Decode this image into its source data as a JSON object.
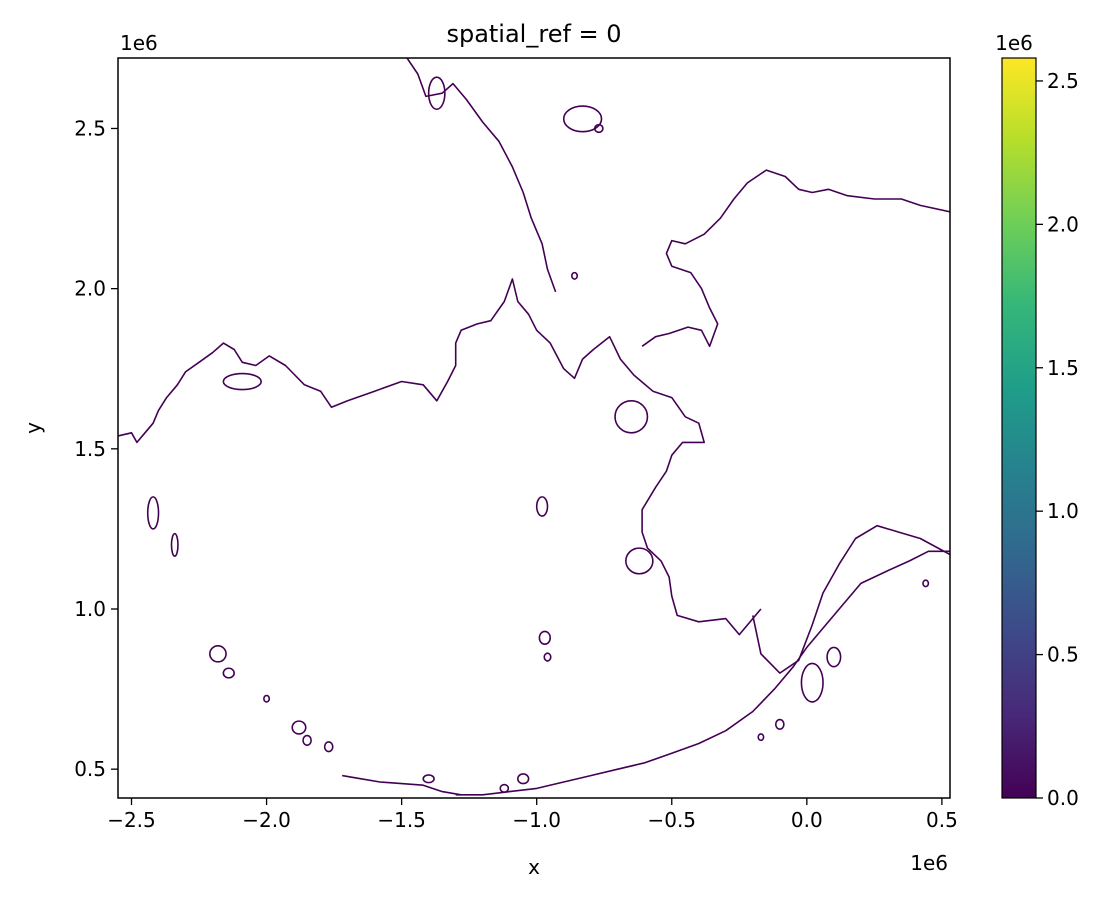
{
  "chart_data": {
    "type": "heatmap",
    "title": "spatial_ref = 0",
    "xlabel": "x",
    "ylabel": "y",
    "x_offset_text": "1e6",
    "y_offset_text": "1e6",
    "xlim": [
      -2.55,
      0.53
    ],
    "ylim": [
      0.41,
      2.72
    ],
    "x_ticks": [
      -2.5,
      -2.0,
      -1.5,
      -1.0,
      -0.5,
      0.0,
      0.5
    ],
    "x_tick_labels": [
      "−2.5",
      "−2.0",
      "−1.5",
      "−1.0",
      "−0.5",
      "0.0",
      "0.5"
    ],
    "y_ticks": [
      0.5,
      1.0,
      1.5,
      2.0,
      2.5
    ],
    "y_tick_labels": [
      "0.5",
      "1.0",
      "1.5",
      "2.0",
      "2.5"
    ],
    "grid": false,
    "colorbar": {
      "colormap": "viridis",
      "range": [
        0.0,
        2.58
      ],
      "ticks": [
        0.0,
        0.5,
        1.0,
        1.5,
        2.0,
        2.5
      ],
      "tick_labels": [
        "0.0",
        "0.5",
        "1.0",
        "1.5",
        "2.0",
        "2.5"
      ],
      "offset_text": "1e6",
      "colors": [
        "#440154",
        "#482878",
        "#3e4989",
        "#31688e",
        "#26828e",
        "#1f9e89",
        "#35b779",
        "#6ece58",
        "#b5de2b",
        "#fde725"
      ]
    },
    "mask_color": "#440154",
    "coastlines": [
      {
        "name": "mainland-west",
        "points": [
          [
            -2.55,
            1.54
          ],
          [
            -2.5,
            1.55
          ],
          [
            -2.48,
            1.52
          ],
          [
            -2.45,
            1.55
          ],
          [
            -2.42,
            1.58
          ],
          [
            -2.4,
            1.62
          ],
          [
            -2.37,
            1.66
          ],
          [
            -2.33,
            1.7
          ],
          [
            -2.3,
            1.74
          ],
          [
            -2.25,
            1.77
          ],
          [
            -2.2,
            1.8
          ],
          [
            -2.16,
            1.83
          ],
          [
            -2.12,
            1.81
          ],
          [
            -2.09,
            1.77
          ],
          [
            -2.04,
            1.76
          ],
          [
            -1.99,
            1.79
          ],
          [
            -1.93,
            1.76
          ],
          [
            -1.86,
            1.7
          ],
          [
            -1.8,
            1.68
          ],
          [
            -1.76,
            1.63
          ],
          [
            -1.7,
            1.65
          ],
          [
            -1.6,
            1.68
          ],
          [
            -1.5,
            1.71
          ],
          [
            -1.42,
            1.7
          ],
          [
            -1.37,
            1.65
          ],
          [
            -1.33,
            1.71
          ],
          [
            -1.3,
            1.76
          ],
          [
            -1.3,
            1.83
          ],
          [
            -1.28,
            1.87
          ],
          [
            -1.22,
            1.89
          ],
          [
            -1.17,
            1.9
          ],
          [
            -1.12,
            1.96
          ],
          [
            -1.09,
            2.03
          ],
          [
            -1.07,
            1.96
          ],
          [
            -1.03,
            1.92
          ],
          [
            -1.0,
            1.87
          ],
          [
            -0.95,
            1.83
          ],
          [
            -0.9,
            1.75
          ],
          [
            -0.86,
            1.72
          ],
          [
            -0.83,
            1.78
          ],
          [
            -0.79,
            1.81
          ],
          [
            -0.73,
            1.85
          ],
          [
            -0.69,
            1.78
          ],
          [
            -0.64,
            1.73
          ],
          [
            -0.57,
            1.68
          ],
          [
            -0.5,
            1.66
          ],
          [
            -0.45,
            1.6
          ],
          [
            -0.4,
            1.58
          ],
          [
            -0.38,
            1.52
          ],
          [
            -0.46,
            1.52
          ],
          [
            -0.5,
            1.48
          ],
          [
            -0.52,
            1.43
          ],
          [
            -0.56,
            1.38
          ],
          [
            -0.61,
            1.31
          ],
          [
            -0.61,
            1.24
          ],
          [
            -0.59,
            1.19
          ],
          [
            -0.54,
            1.15
          ],
          [
            -0.51,
            1.1
          ],
          [
            -0.5,
            1.04
          ],
          [
            -0.48,
            0.98
          ],
          [
            -0.4,
            0.96
          ],
          [
            -0.3,
            0.97
          ],
          [
            -0.25,
            0.92
          ],
          [
            -0.17,
            1.0
          ]
        ]
      },
      {
        "name": "mainland-north",
        "points": [
          [
            -1.48,
            2.72
          ],
          [
            -1.44,
            2.67
          ],
          [
            -1.41,
            2.6
          ],
          [
            -1.35,
            2.61
          ],
          [
            -1.31,
            2.64
          ],
          [
            -1.26,
            2.59
          ],
          [
            -1.2,
            2.52
          ],
          [
            -1.14,
            2.46
          ],
          [
            -1.09,
            2.38
          ],
          [
            -1.05,
            2.3
          ],
          [
            -1.02,
            2.22
          ],
          [
            -0.98,
            2.14
          ],
          [
            -0.96,
            2.06
          ],
          [
            -0.93,
            1.99
          ]
        ]
      },
      {
        "name": "mainland-northeast",
        "points": [
          [
            -0.61,
            1.82
          ],
          [
            -0.56,
            1.85
          ],
          [
            -0.51,
            1.86
          ],
          [
            -0.44,
            1.88
          ],
          [
            -0.39,
            1.87
          ],
          [
            -0.36,
            1.82
          ],
          [
            -0.33,
            1.89
          ],
          [
            -0.36,
            1.94
          ],
          [
            -0.39,
            2.0
          ],
          [
            -0.43,
            2.05
          ],
          [
            -0.5,
            2.07
          ],
          [
            -0.52,
            2.11
          ],
          [
            -0.5,
            2.15
          ],
          [
            -0.45,
            2.14
          ],
          [
            -0.38,
            2.17
          ],
          [
            -0.32,
            2.22
          ],
          [
            -0.27,
            2.28
          ],
          [
            -0.22,
            2.33
          ],
          [
            -0.15,
            2.37
          ],
          [
            -0.08,
            2.35
          ],
          [
            -0.03,
            2.31
          ],
          [
            0.02,
            2.3
          ],
          [
            0.08,
            2.31
          ],
          [
            0.15,
            2.29
          ],
          [
            0.25,
            2.28
          ],
          [
            0.35,
            2.28
          ],
          [
            0.42,
            2.26
          ],
          [
            0.53,
            2.24
          ]
        ]
      },
      {
        "name": "peninsula-south",
        "points": [
          [
            0.53,
            1.18
          ],
          [
            0.45,
            1.18
          ],
          [
            0.38,
            1.15
          ],
          [
            0.3,
            1.12
          ],
          [
            0.2,
            1.08
          ],
          [
            0.12,
            1.0
          ],
          [
            0.05,
            0.93
          ],
          [
            0.0,
            0.88
          ],
          [
            -0.05,
            0.82
          ],
          [
            -0.12,
            0.75
          ],
          [
            -0.2,
            0.68
          ],
          [
            -0.3,
            0.62
          ],
          [
            -0.4,
            0.58
          ],
          [
            -0.5,
            0.55
          ],
          [
            -0.6,
            0.52
          ],
          [
            -0.7,
            0.5
          ],
          [
            -0.8,
            0.48
          ],
          [
            -0.9,
            0.46
          ],
          [
            -1.0,
            0.44
          ],
          [
            -1.1,
            0.43
          ],
          [
            -1.2,
            0.42
          ],
          [
            -1.3,
            0.42
          ]
        ]
      },
      {
        "name": "peninsula-north",
        "points": [
          [
            -0.2,
            0.98
          ],
          [
            -0.17,
            0.86
          ],
          [
            -0.1,
            0.8
          ],
          [
            -0.03,
            0.84
          ],
          [
            0.02,
            0.95
          ],
          [
            0.06,
            1.05
          ],
          [
            0.12,
            1.14
          ],
          [
            0.18,
            1.22
          ],
          [
            0.26,
            1.26
          ],
          [
            0.34,
            1.24
          ],
          [
            0.42,
            1.22
          ],
          [
            0.53,
            1.17
          ]
        ]
      },
      {
        "name": "aleutian-chain",
        "points": [
          [
            -1.72,
            0.48
          ],
          [
            -1.65,
            0.47
          ],
          [
            -1.58,
            0.46
          ],
          [
            -1.5,
            0.455
          ],
          [
            -1.42,
            0.45
          ],
          [
            -1.35,
            0.43
          ],
          [
            -1.28,
            0.42
          ]
        ]
      }
    ],
    "islands": [
      {
        "name": "island-northwest-1",
        "center": [
          -1.37,
          2.61
        ],
        "radius": [
          0.03,
          0.05
        ]
      },
      {
        "name": "island-north-1",
        "center": [
          -0.83,
          2.53
        ],
        "radius": [
          0.07,
          0.04
        ]
      },
      {
        "name": "island-north-2",
        "center": [
          -0.77,
          2.5
        ],
        "radius": [
          0.015,
          0.012
        ]
      },
      {
        "name": "island-strait",
        "center": [
          -0.86,
          2.04
        ],
        "radius": [
          0.01,
          0.01
        ]
      },
      {
        "name": "island-st-lawrence",
        "center": [
          -2.09,
          1.71
        ],
        "radius": [
          0.07,
          0.025
        ]
      },
      {
        "name": "island-nunivak",
        "center": [
          -0.65,
          1.6
        ],
        "radius": [
          0.06,
          0.05
        ]
      },
      {
        "name": "island-kodiak",
        "center": [
          -0.62,
          1.15
        ],
        "radius": [
          0.05,
          0.04
        ]
      },
      {
        "name": "island-pribilof-1",
        "center": [
          -0.98,
          1.32
        ],
        "radius": [
          0.02,
          0.03
        ]
      },
      {
        "name": "island-pribilof-2",
        "center": [
          -0.97,
          0.91
        ],
        "radius": [
          0.02,
          0.02
        ]
      },
      {
        "name": "island-pribilof-3",
        "center": [
          -0.96,
          0.85
        ],
        "radius": [
          0.012,
          0.012
        ]
      },
      {
        "name": "island-west-1",
        "center": [
          -2.42,
          1.3
        ],
        "radius": [
          0.02,
          0.05
        ]
      },
      {
        "name": "island-west-2",
        "center": [
          -2.34,
          1.2
        ],
        "radius": [
          0.012,
          0.035
        ]
      },
      {
        "name": "island-sw-1",
        "center": [
          -2.18,
          0.86
        ],
        "radius": [
          0.03,
          0.025
        ]
      },
      {
        "name": "island-sw-2",
        "center": [
          -2.14,
          0.8
        ],
        "radius": [
          0.02,
          0.015
        ]
      },
      {
        "name": "island-sw-3",
        "center": [
          -2.0,
          0.72
        ],
        "radius": [
          0.01,
          0.01
        ]
      },
      {
        "name": "island-sw-4",
        "center": [
          -1.88,
          0.63
        ],
        "radius": [
          0.025,
          0.02
        ]
      },
      {
        "name": "island-sw-5",
        "center": [
          -1.85,
          0.59
        ],
        "radius": [
          0.015,
          0.015
        ]
      },
      {
        "name": "island-sw-6",
        "center": [
          -1.77,
          0.57
        ],
        "radius": [
          0.015,
          0.015
        ]
      },
      {
        "name": "island-kenai-1",
        "center": [
          0.02,
          0.77
        ],
        "radius": [
          0.04,
          0.06
        ]
      },
      {
        "name": "island-kenai-2",
        "center": [
          0.1,
          0.85
        ],
        "radius": [
          0.025,
          0.03
        ]
      },
      {
        "name": "island-gulf-1",
        "center": [
          -0.1,
          0.64
        ],
        "radius": [
          0.015,
          0.015
        ]
      },
      {
        "name": "island-gulf-2",
        "center": [
          -0.17,
          0.6
        ],
        "radius": [
          0.01,
          0.01
        ]
      },
      {
        "name": "island-east-1",
        "center": [
          0.44,
          1.08
        ],
        "radius": [
          0.01,
          0.01
        ]
      },
      {
        "name": "island-aleut-1",
        "center": [
          -1.05,
          0.47
        ],
        "radius": [
          0.02,
          0.015
        ]
      },
      {
        "name": "island-aleut-2",
        "center": [
          -1.12,
          0.44
        ],
        "radius": [
          0.015,
          0.012
        ]
      },
      {
        "name": "island-aleut-3",
        "center": [
          -1.4,
          0.47
        ],
        "radius": [
          0.02,
          0.012
        ]
      }
    ]
  }
}
